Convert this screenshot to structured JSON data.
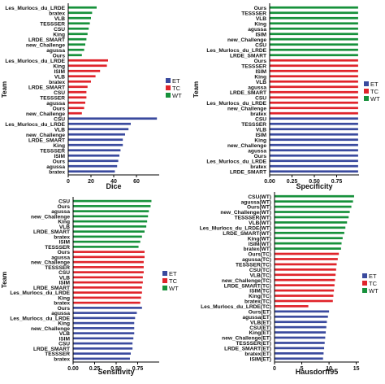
{
  "colors": {
    "ET": "#3a4a9e",
    "TC": "#e0242b",
    "WT": "#17913b"
  },
  "chart_data": [
    {
      "type": "bar",
      "orientation": "horizontal",
      "xlabel": "Dice",
      "ylabel": "Team",
      "xlim": [
        0,
        80
      ],
      "xticks": [
        "0",
        "20",
        "40",
        "60"
      ],
      "xtick_values": [
        0,
        20,
        40,
        60
      ],
      "legend": {
        "position": "right",
        "entries": [
          "ET",
          "TC",
          "WT"
        ]
      },
      "groups": [
        {
          "name": "WT",
          "color": "#17913b",
          "labels": [
            "Les_Murlocs_du_LRDE",
            "bratex",
            "VLB",
            "TESSSER",
            "CSU",
            "King",
            "LRDE_SMART",
            "new_Challenge",
            "agussa",
            "Ours"
          ],
          "values": [
            25,
            21,
            20,
            19,
            18,
            17,
            16,
            15,
            14,
            12
          ]
        },
        {
          "name": "TC",
          "color": "#e0242b",
          "labels": [
            "Les_Murlocs_du_LRDE",
            "King",
            "ISIM",
            "VLB",
            "bratex",
            "LRDE_SMART",
            "CSU",
            "TESSSER",
            "agussa",
            "Ours",
            "new_Challenge"
          ],
          "values": [
            35,
            34,
            28,
            24,
            20,
            17,
            16,
            16,
            15,
            14,
            12
          ]
        },
        {
          "name": "ET",
          "color": "#3a4a9e",
          "labels": [
            "CSU",
            "Les_Murlocs_du_LRDE",
            "VLB",
            "new_Challenge",
            "LRDE_SMART",
            "King",
            "TESSSER",
            "ISIM",
            "Ours",
            "agussa",
            "bratex"
          ],
          "values": [
            78,
            55,
            53,
            50,
            48,
            48,
            46,
            45,
            44,
            43,
            41
          ]
        }
      ]
    },
    {
      "type": "bar",
      "orientation": "horizontal",
      "xlabel": "Specificity",
      "ylabel": "Team",
      "xlim": [
        0,
        1.0
      ],
      "xticks": [
        "0.00",
        "0.25",
        "0.50",
        "0.75"
      ],
      "xtick_values": [
        0,
        0.25,
        0.5,
        0.75
      ],
      "legend": {
        "position": "right",
        "entries": [
          "ET",
          "TC",
          "WT"
        ]
      },
      "groups": [
        {
          "name": "WT",
          "color": "#17913b",
          "labels": [
            "Ours",
            "TESSSER",
            "VLB",
            "King",
            "agussa",
            "ISIM",
            "new_Challenge",
            "CSU",
            "Les_Murlocs_du_LRDE",
            "LRDE_SMART"
          ],
          "values": [
            0.99,
            0.99,
            0.99,
            0.99,
            0.99,
            0.99,
            0.99,
            0.99,
            0.99,
            0.99
          ]
        },
        {
          "name": "TC",
          "color": "#e0242b",
          "labels": [
            "Ours",
            "TESSSER",
            "ISIM",
            "King",
            "VLB",
            "agussa",
            "LRDE_SMART",
            "CSU",
            "Les_Murlocs_du_LRDE",
            "new_Challenge",
            "bratex"
          ],
          "values": [
            0.99,
            0.99,
            0.99,
            0.99,
            0.99,
            0.99,
            0.99,
            0.99,
            0.99,
            0.99,
            0.99
          ]
        },
        {
          "name": "ET",
          "color": "#3a4a9e",
          "labels": [
            "CSU",
            "TESSSER",
            "VLB",
            "ISIM",
            "King",
            "new_Challenge",
            "agussa",
            "Ours",
            "Les_Murlocs_du_LRDE",
            "bratex",
            "LRDE_SMART"
          ],
          "values": [
            0.99,
            0.99,
            0.99,
            0.99,
            0.99,
            0.99,
            0.99,
            0.99,
            0.99,
            0.99,
            0.99
          ]
        }
      ]
    },
    {
      "type": "bar",
      "orientation": "horizontal",
      "xlabel": "Sensitivity",
      "ylabel": "Team",
      "xlim": [
        0,
        1.0
      ],
      "xticks": [
        "0.00",
        "0.25",
        "0.50",
        "0.75"
      ],
      "xtick_values": [
        0,
        0.25,
        0.5,
        0.75
      ],
      "legend": {
        "position": "right",
        "entries": [
          "ET",
          "TC",
          "WT"
        ]
      },
      "groups": [
        {
          "name": "WT",
          "color": "#17913b",
          "labels": [
            "CSU",
            "Ours",
            "agussa",
            "new_Challenge",
            "King",
            "VLB",
            "LRDE_SMART",
            "bratex",
            "ISIM",
            "TESSSER"
          ],
          "values": [
            0.91,
            0.9,
            0.88,
            0.87,
            0.86,
            0.85,
            0.83,
            0.8,
            0.78,
            0.76
          ]
        },
        {
          "name": "TC",
          "color": "#e0242b",
          "labels": [
            "Ours",
            "agussa",
            "new_Challenge",
            "TESSSER",
            "CSU",
            "VLB",
            "ISIM",
            "LRDE_SMART",
            "Les_Murlocs_du_LRDE",
            "King",
            "bratex"
          ],
          "values": [
            0.83,
            0.83,
            0.82,
            0.82,
            0.82,
            0.81,
            0.81,
            0.8,
            0.8,
            0.79,
            0.78
          ]
        },
        {
          "name": "ET",
          "color": "#3a4a9e",
          "labels": [
            "Ours",
            "agussa",
            "Les_Murlocs_du_LRDE",
            "King",
            "new_Challenge",
            "VLB",
            "ISIM",
            "CSU",
            "LRDE_SMART",
            "TESSSER",
            "bratex"
          ],
          "values": [
            0.8,
            0.74,
            0.72,
            0.71,
            0.71,
            0.71,
            0.7,
            0.69,
            0.69,
            0.67,
            0.66
          ]
        }
      ]
    },
    {
      "type": "bar",
      "orientation": "horizontal",
      "xlabel": "Hausdorff95",
      "ylabel": "",
      "xlim": [
        0,
        15.5
      ],
      "xticks": [
        "0",
        "5",
        "10",
        "15"
      ],
      "xtick_values": [
        0,
        5,
        10,
        15
      ],
      "legend": {
        "position": "right",
        "entries": [
          "ET",
          "TC",
          "WT"
        ]
      },
      "groups": [
        {
          "name": "WT",
          "color": "#17913b",
          "labels": [
            "CSU(WT)",
            "agussa(WT)",
            "Ours(WT)",
            "new_Challenge(WT)",
            "TESSSER(WT)",
            "VLB(WT)",
            "Les_Murlocs_du_LRDE(WT)",
            "LRDE_SMART(WT)",
            "King(WT)",
            "ISIM(WT)",
            "bratex(WT)"
          ],
          "values": [
            14.6,
            14.4,
            14.1,
            13.8,
            13.6,
            13.3,
            13.0,
            12.8,
            12.5,
            12.3,
            12.2
          ]
        },
        {
          "name": "TC",
          "color": "#e0242b",
          "labels": [
            "Ours(TC)",
            "agussa(TC)",
            "TESSSER(TC)",
            "CSU(TC)",
            "VLB(TC)",
            "new_Challenge(TC)",
            "LRDE_SMART(TC)",
            "ISIM(TC)",
            "King(TC)",
            "bratex(TC)",
            "Les_Murlocs_du_LRDE(TC)"
          ],
          "values": [
            11.8,
            11.6,
            11.4,
            11.3,
            11.2,
            11.1,
            11.0,
            10.9,
            10.8,
            10.7,
            6.2
          ]
        },
        {
          "name": "ET",
          "color": "#3a4a9e",
          "labels": [
            "Ours(ET)",
            "agussa(ET)",
            "VLB(ET)",
            "CSU(ET)",
            "King(ET)",
            "new_Challenge(ET)",
            "TESSSER(ET)",
            "LRDE_SMART(ET)",
            "bratex(ET)",
            "ISIM(ET)"
          ],
          "values": [
            10.0,
            9.8,
            9.6,
            9.5,
            9.4,
            9.3,
            9.2,
            9.1,
            9.0,
            8.9
          ]
        }
      ]
    }
  ]
}
